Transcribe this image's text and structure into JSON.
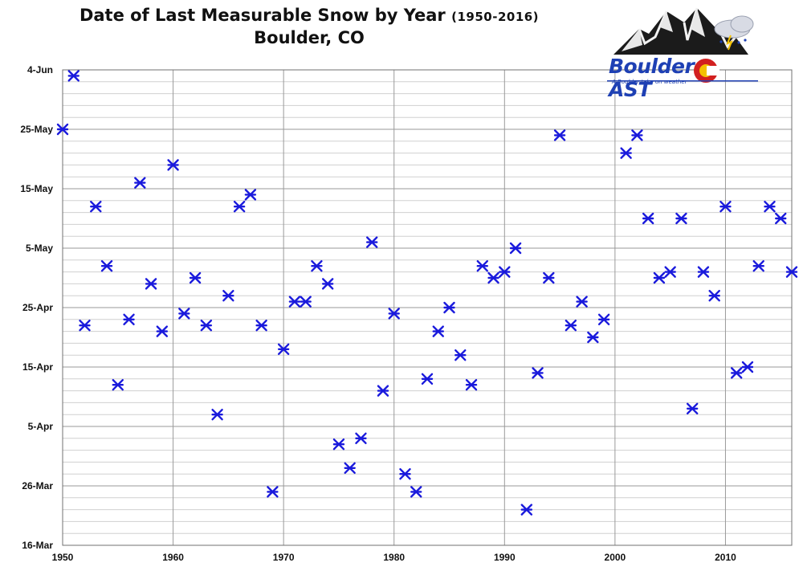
{
  "title": {
    "main": "Date of Last Measurable Snow by Year",
    "years": "(1950-2016)",
    "location": "Boulder, CO"
  },
  "logo": {
    "brand_left": "Boulder",
    "brand_right": "AST",
    "tagline": "A Boulder take on weather"
  },
  "chart_data": {
    "type": "scatter",
    "title": "Date of Last Measurable Snow by Year (1950-2016) Boulder, CO",
    "xlabel": "",
    "ylabel": "",
    "xlim": [
      1950,
      2016
    ],
    "ylim": [
      "2016-03-16",
      "2016-06-04"
    ],
    "x_ticks": [
      "1950",
      "1960",
      "1970",
      "1980",
      "1990",
      "2000",
      "2010"
    ],
    "y_ticks": [
      "16-Mar",
      "26-Mar",
      "5-Apr",
      "15-Apr",
      "25-Apr",
      "5-May",
      "15-May",
      "25-May",
      "4-Jun"
    ],
    "grid": true,
    "marker": "asterisk",
    "marker_color": "#1a1adc",
    "points": [
      {
        "x": 1950,
        "y": "May 25"
      },
      {
        "x": 1951,
        "y": "Jun 3"
      },
      {
        "x": 1952,
        "y": "Apr 22"
      },
      {
        "x": 1953,
        "y": "May 12"
      },
      {
        "x": 1954,
        "y": "May 2"
      },
      {
        "x": 1955,
        "y": "Apr 12"
      },
      {
        "x": 1956,
        "y": "Apr 23"
      },
      {
        "x": 1957,
        "y": "May 16"
      },
      {
        "x": 1958,
        "y": "Apr 29"
      },
      {
        "x": 1959,
        "y": "Apr 21"
      },
      {
        "x": 1960,
        "y": "May 19"
      },
      {
        "x": 1961,
        "y": "Apr 24"
      },
      {
        "x": 1962,
        "y": "Apr 30"
      },
      {
        "x": 1963,
        "y": "Apr 22"
      },
      {
        "x": 1964,
        "y": "Apr 7"
      },
      {
        "x": 1965,
        "y": "Apr 27"
      },
      {
        "x": 1966,
        "y": "May 12"
      },
      {
        "x": 1967,
        "y": "May 14"
      },
      {
        "x": 1968,
        "y": "Apr 22"
      },
      {
        "x": 1969,
        "y": "Mar 25"
      },
      {
        "x": 1970,
        "y": "Apr 18"
      },
      {
        "x": 1971,
        "y": "Apr 26"
      },
      {
        "x": 1972,
        "y": "Apr 26"
      },
      {
        "x": 1973,
        "y": "May 2"
      },
      {
        "x": 1974,
        "y": "Apr 29"
      },
      {
        "x": 1975,
        "y": "Apr 2"
      },
      {
        "x": 1976,
        "y": "Mar 29"
      },
      {
        "x": 1977,
        "y": "Apr 3"
      },
      {
        "x": 1978,
        "y": "May 6"
      },
      {
        "x": 1979,
        "y": "Apr 11"
      },
      {
        "x": 1980,
        "y": "Apr 24"
      },
      {
        "x": 1981,
        "y": "Mar 28"
      },
      {
        "x": 1982,
        "y": "Mar 25"
      },
      {
        "x": 1983,
        "y": "Apr 13"
      },
      {
        "x": 1984,
        "y": "Apr 21"
      },
      {
        "x": 1985,
        "y": "Apr 25"
      },
      {
        "x": 1986,
        "y": "Apr 17"
      },
      {
        "x": 1987,
        "y": "Apr 12"
      },
      {
        "x": 1988,
        "y": "May 2"
      },
      {
        "x": 1989,
        "y": "Apr 30"
      },
      {
        "x": 1990,
        "y": "May 1"
      },
      {
        "x": 1991,
        "y": "May 5"
      },
      {
        "x": 1992,
        "y": "Mar 22"
      },
      {
        "x": 1993,
        "y": "Apr 14"
      },
      {
        "x": 1994,
        "y": "Apr 30"
      },
      {
        "x": 1995,
        "y": "May 24"
      },
      {
        "x": 1996,
        "y": "Apr 22"
      },
      {
        "x": 1997,
        "y": "Apr 26"
      },
      {
        "x": 1998,
        "y": "Apr 20"
      },
      {
        "x": 1999,
        "y": "Apr 23"
      },
      {
        "x": 2001,
        "y": "May 21"
      },
      {
        "x": 2002,
        "y": "May 24"
      },
      {
        "x": 2003,
        "y": "May 10"
      },
      {
        "x": 2004,
        "y": "Apr 30"
      },
      {
        "x": 2005,
        "y": "May 1"
      },
      {
        "x": 2006,
        "y": "May 10"
      },
      {
        "x": 2007,
        "y": "Apr 8"
      },
      {
        "x": 2008,
        "y": "May 1"
      },
      {
        "x": 2009,
        "y": "Apr 27"
      },
      {
        "x": 2010,
        "y": "May 12"
      },
      {
        "x": 2011,
        "y": "Apr 14"
      },
      {
        "x": 2012,
        "y": "Apr 15"
      },
      {
        "x": 2013,
        "y": "May 2"
      },
      {
        "x": 2014,
        "y": "May 12"
      },
      {
        "x": 2015,
        "y": "May 10"
      },
      {
        "x": 2016,
        "y": "May 1"
      }
    ]
  }
}
